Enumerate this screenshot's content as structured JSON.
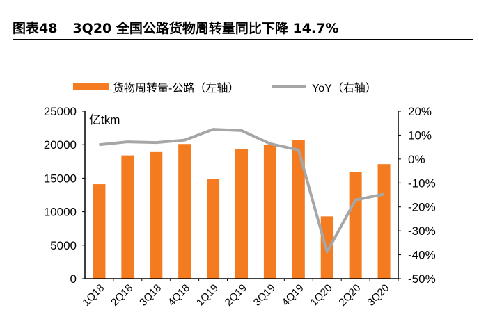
{
  "header": {
    "figure_no": "图表48",
    "title": "3Q20 全国公路货物周转量同比下降 14.7%"
  },
  "chart_data": {
    "type": "bar+line",
    "title": "3Q20 全国公路货物周转量同比下降 14.7%",
    "unit_label": "亿tkm",
    "categories": [
      "1Q18",
      "2Q18",
      "3Q18",
      "4Q18",
      "1Q19",
      "2Q19",
      "3Q19",
      "4Q19",
      "1Q20",
      "2Q20",
      "3Q20"
    ],
    "series": [
      {
        "name": "货物周转量-公路（左轴）",
        "type": "bar",
        "axis": "left",
        "color": "#F47B20",
        "values": [
          14100,
          18400,
          19000,
          20100,
          14900,
          19400,
          20000,
          20700,
          9300,
          15900,
          17100
        ]
      },
      {
        "name": "YoY（右轴）",
        "type": "line",
        "axis": "right",
        "color": "#A6A6A6",
        "values": [
          6.0,
          7.2,
          6.9,
          7.9,
          12.4,
          11.9,
          6.4,
          3.8,
          -38.8,
          -17.1,
          -14.7
        ]
      }
    ],
    "left_axis": {
      "ylim": [
        0,
        25000
      ],
      "ticks": [
        "0",
        "5000",
        "10000",
        "15000",
        "20000",
        "25000"
      ]
    },
    "right_axis": {
      "ylim": [
        -50,
        20
      ],
      "ticks": [
        "-50%",
        "-40%",
        "-30%",
        "-20%",
        "-10%",
        "0%",
        "10%",
        "20%"
      ]
    },
    "legend": "top",
    "grid": false
  }
}
